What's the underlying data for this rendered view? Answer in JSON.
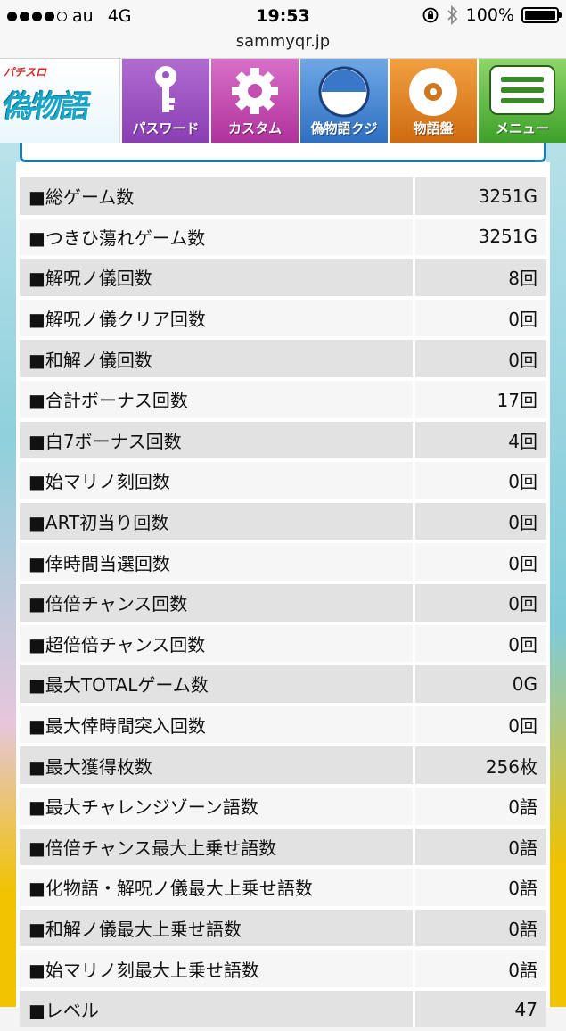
{
  "status": {
    "carrier": "au",
    "network": "4G",
    "time": "19:53",
    "battery": "100%"
  },
  "url": "sammyqr.jp",
  "nav": {
    "logo_small": "パチスロ",
    "logo_big": "偽物語",
    "buttons": [
      {
        "label": "パスワード",
        "icon": "key-icon"
      },
      {
        "label": "カスタム",
        "icon": "gear-icon"
      },
      {
        "label": "偽物語クジ",
        "icon": "lottery-icon"
      },
      {
        "label": "物語盤",
        "icon": "disc-icon"
      },
      {
        "label": "メニュー",
        "icon": "menu-icon"
      }
    ]
  },
  "stats": [
    {
      "name": "■総ゲーム数",
      "value": "3251G"
    },
    {
      "name": "■つきひ蕩れゲーム数",
      "value": "3251G"
    },
    {
      "name": "■解呪ノ儀回数",
      "value": "8回"
    },
    {
      "name": "■解呪ノ儀クリア回数",
      "value": "0回"
    },
    {
      "name": "■和解ノ儀回数",
      "value": "0回"
    },
    {
      "name": "■合計ボーナス回数",
      "value": "17回"
    },
    {
      "name": "■白7ボーナス回数",
      "value": "4回"
    },
    {
      "name": "■始マリノ刻回数",
      "value": "0回"
    },
    {
      "name": "■ART初当り回数",
      "value": "0回"
    },
    {
      "name": "■倖時間当選回数",
      "value": "0回"
    },
    {
      "name": "■倍倍チャンス回数",
      "value": "0回"
    },
    {
      "name": "■超倍倍チャンス回数",
      "value": "0回"
    },
    {
      "name": "■最大TOTALゲーム数",
      "value": "0G"
    },
    {
      "name": "■最大倖時間突入回数",
      "value": "0回"
    },
    {
      "name": "■最大獲得枚数",
      "value": "256枚"
    },
    {
      "name": "■最大チャレンジゾーン語数",
      "value": "0語"
    },
    {
      "name": "■倍倍チャンス最大上乗せ語数",
      "value": "0語"
    },
    {
      "name": "■化物語・解呪ノ儀最大上乗せ語数",
      "value": "0語"
    },
    {
      "name": "■和解ノ儀最大上乗せ語数",
      "value": "0語"
    },
    {
      "name": "■始マリノ刻最大上乗せ語数",
      "value": "0語"
    },
    {
      "name": "■レベル",
      "value": "47"
    }
  ]
}
